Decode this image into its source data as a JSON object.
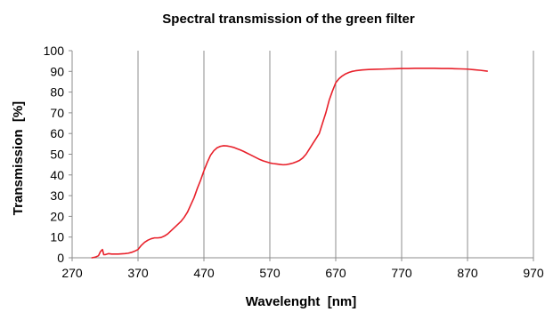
{
  "chart_data": {
    "type": "line",
    "title": "Spectral transmission of the green filter",
    "xlabel": "Wavelenght  [nm]",
    "ylabel": "Transmission  [%]",
    "xlim": [
      270,
      970
    ],
    "ylim": [
      0,
      100
    ],
    "xticks": [
      270,
      370,
      470,
      570,
      670,
      770,
      870,
      970
    ],
    "yticks": [
      0,
      10,
      20,
      30,
      40,
      50,
      60,
      70,
      80,
      90,
      100
    ],
    "grid": "vertical",
    "legend": "none",
    "series": [
      {
        "color": "#e8202a",
        "x": [
          300,
          305,
          310,
          313,
          316,
          318,
          320,
          325,
          330,
          335,
          340,
          345,
          350,
          355,
          360,
          365,
          370,
          375,
          380,
          385,
          390,
          395,
          400,
          405,
          410,
          415,
          420,
          425,
          430,
          435,
          440,
          445,
          450,
          455,
          460,
          465,
          470,
          475,
          480,
          485,
          490,
          495,
          500,
          505,
          510,
          515,
          520,
          525,
          530,
          535,
          540,
          545,
          550,
          555,
          560,
          565,
          570,
          575,
          580,
          585,
          590,
          595,
          600,
          605,
          610,
          615,
          620,
          625,
          630,
          635,
          640,
          645,
          650,
          655,
          660,
          665,
          670,
          675,
          680,
          685,
          690,
          695,
          700,
          710,
          720,
          730,
          740,
          750,
          760,
          770,
          780,
          790,
          800,
          810,
          820,
          830,
          840,
          850,
          860,
          870,
          880,
          890,
          900
        ],
        "y": [
          0,
          0.3,
          1,
          3,
          4,
          1.5,
          1.5,
          2,
          1.8,
          1.8,
          1.8,
          1.9,
          2,
          2.2,
          2.6,
          3.2,
          4,
          6,
          7.5,
          8.5,
          9.2,
          9.6,
          9.6,
          9.8,
          10.5,
          11.5,
          13,
          14.5,
          16,
          17.5,
          19.5,
          22,
          25.5,
          29,
          33.5,
          37.5,
          42,
          46,
          49.5,
          51.7,
          53.1,
          53.8,
          54.1,
          54,
          53.7,
          53.3,
          52.7,
          52.1,
          51.4,
          50.6,
          49.8,
          49,
          48.2,
          47.4,
          46.8,
          46.3,
          45.8,
          45.5,
          45.3,
          45.1,
          44.9,
          45,
          45.3,
          45.7,
          46.3,
          47,
          48.2,
          50,
          52.5,
          55,
          57.5,
          60,
          65,
          70,
          76,
          80.5,
          84.5,
          86.5,
          87.8,
          88.8,
          89.5,
          90,
          90.3,
          90.7,
          90.9,
          91,
          91.1,
          91.2,
          91.3,
          91.4,
          91.4,
          91.5,
          91.5,
          91.5,
          91.5,
          91.4,
          91.4,
          91.3,
          91.2,
          91.1,
          90.8,
          90.5,
          90.1
        ]
      }
    ]
  }
}
